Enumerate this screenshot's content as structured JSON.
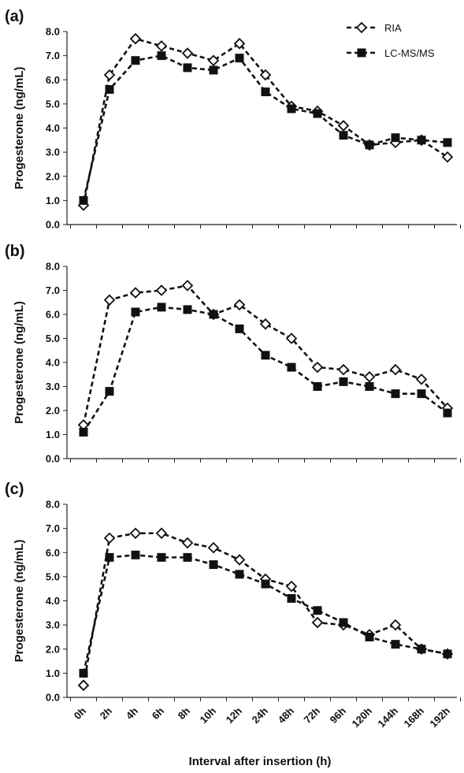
{
  "chart_data": {
    "type": "line",
    "x": [
      "0h",
      "2h",
      "4h",
      "6h",
      "8h",
      "10h",
      "12h",
      "24h",
      "48h",
      "72h",
      "96h",
      "120h",
      "144h",
      "168h",
      "192h"
    ],
    "xlabel": "Interval after insertion (h)",
    "ylabel": "Progesterone (ng/mL)",
    "ylim": [
      0,
      8
    ],
    "yticks": [
      "0.0",
      "1.0",
      "2.0",
      "3.0",
      "4.0",
      "5.0",
      "6.0",
      "7.0",
      "8.0"
    ],
    "legend": {
      "placement": "top-right",
      "entries": [
        "RIA",
        "LC-MS/MS"
      ]
    },
    "series_style": {
      "RIA": "dashed line, open diamond markers",
      "LC-MS/MS": "dashed line, filled square markers"
    },
    "panels": [
      {
        "label": "(a)",
        "series": [
          {
            "name": "RIA",
            "values": [
              0.8,
              6.2,
              7.7,
              7.4,
              7.1,
              6.8,
              7.5,
              6.2,
              4.9,
              4.7,
              4.1,
              3.3,
              3.4,
              3.5,
              2.8
            ]
          },
          {
            "name": "LC-MS/MS",
            "values": [
              1.0,
              5.6,
              6.8,
              7.0,
              6.5,
              6.4,
              6.9,
              5.5,
              4.8,
              4.6,
              3.7,
              3.3,
              3.6,
              3.5,
              3.4
            ]
          }
        ]
      },
      {
        "label": "(b)",
        "series": [
          {
            "name": "RIA",
            "values": [
              1.4,
              6.6,
              6.9,
              7.0,
              7.2,
              6.0,
              6.4,
              5.6,
              5.0,
              3.8,
              3.7,
              3.4,
              3.7,
              3.3,
              2.1
            ]
          },
          {
            "name": "LC-MS/MS",
            "values": [
              1.1,
              2.8,
              6.1,
              6.3,
              6.2,
              6.0,
              5.4,
              4.3,
              3.8,
              3.0,
              3.2,
              3.0,
              2.7,
              2.7,
              1.9
            ]
          }
        ]
      },
      {
        "label": "(c)",
        "series": [
          {
            "name": "RIA",
            "values": [
              0.5,
              6.6,
              6.8,
              6.8,
              6.4,
              6.2,
              5.7,
              4.9,
              4.6,
              3.1,
              3.0,
              2.6,
              3.0,
              2.0,
              1.8
            ]
          },
          {
            "name": "LC-MS/MS",
            "values": [
              1.0,
              5.8,
              5.9,
              5.8,
              5.8,
              5.5,
              5.1,
              4.7,
              4.1,
              3.6,
              3.1,
              2.5,
              2.2,
              2.0,
              1.8
            ]
          }
        ]
      }
    ]
  }
}
